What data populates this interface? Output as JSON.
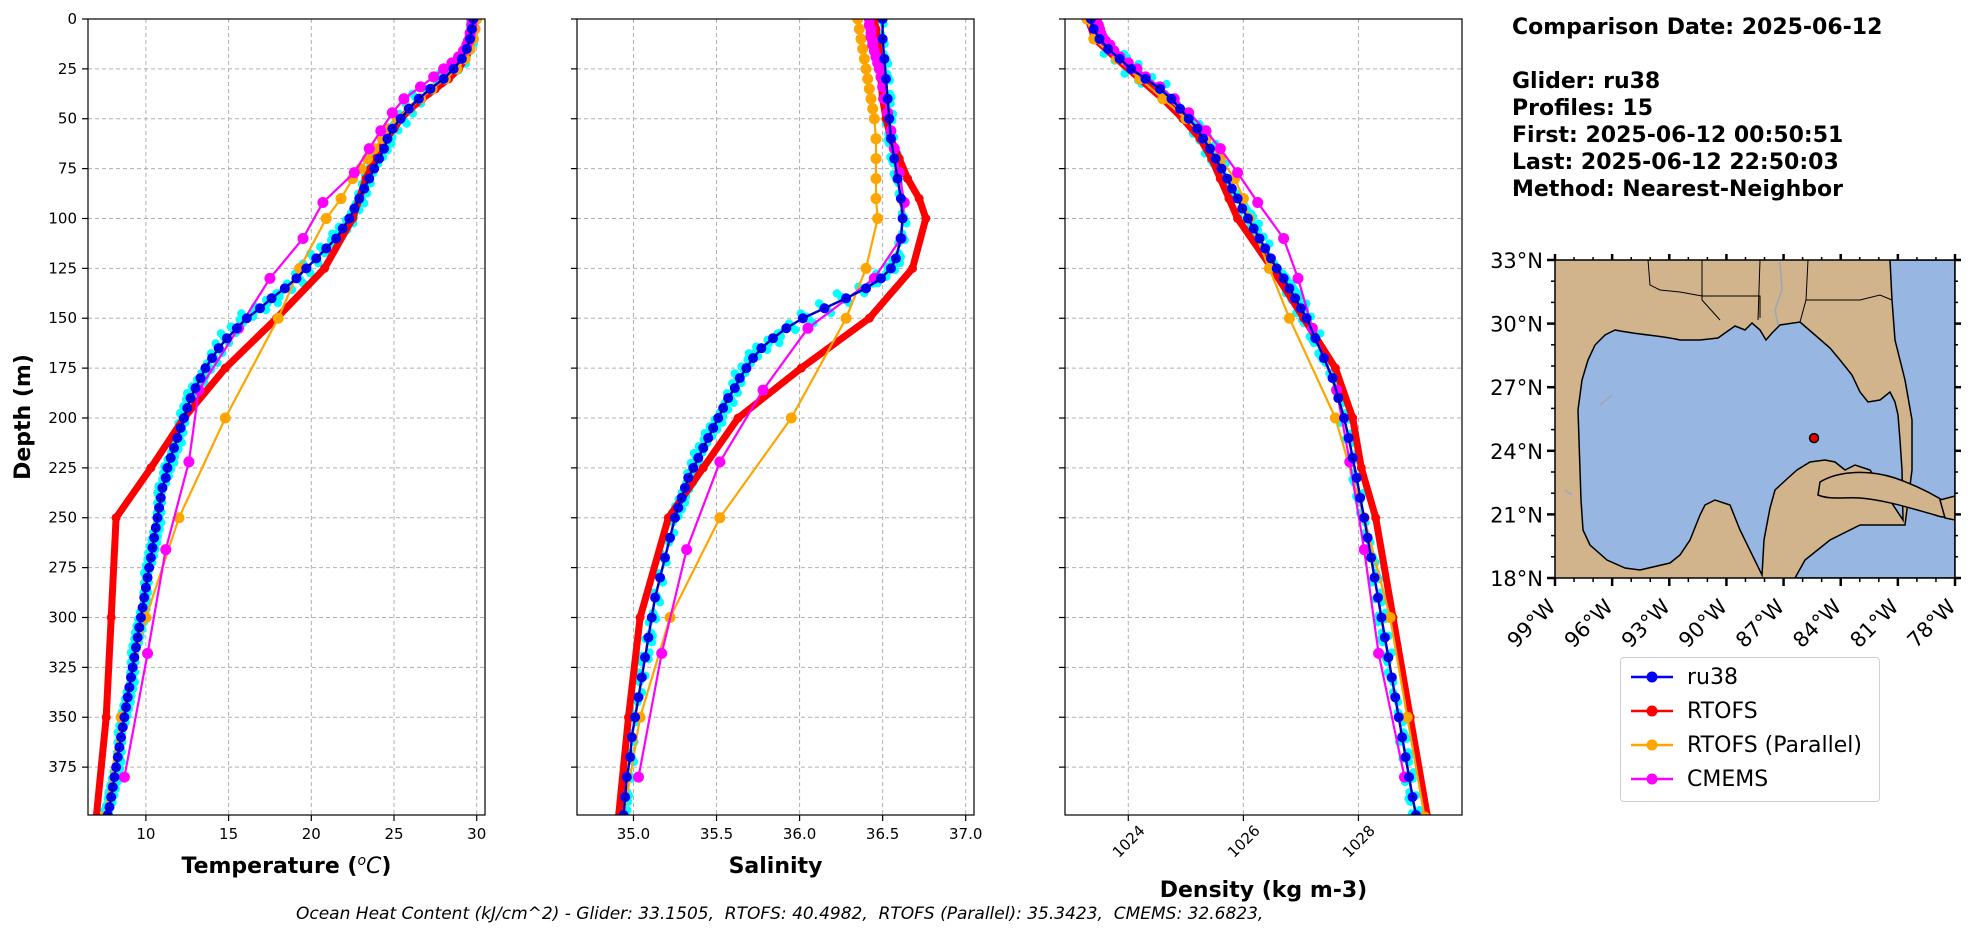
{
  "info": {
    "comparison_date": "Comparison Date: 2025-06-12",
    "glider": "Glider: ru38",
    "profiles": "Profiles: 15",
    "first": "First: 2025-06-12 00:50:51",
    "last": "Last: 2025-06-12 22:50:03",
    "method": "Method: Nearest-Neighbor"
  },
  "footnote": "Ocean Heat Content (kJ/cm^2) - Glider: 33.1505,  RTOFS: 40.4982,  RTOFS (Parallel): 35.3423,  CMEMS: 32.6823,",
  "colors": {
    "ru38": "#0000ff",
    "rtofs": "#ff0000",
    "parallel": "#ffa500",
    "cmems": "#ff00ff",
    "glider_raw": "#00ffff",
    "land": "#d2b48c",
    "ocean": "#97b6e1"
  },
  "legend": [
    {
      "key": "ru38",
      "label": "ru38"
    },
    {
      "key": "rtofs",
      "label": "RTOFS"
    },
    {
      "key": "parallel",
      "label": "RTOFS (Parallel)"
    },
    {
      "key": "cmems",
      "label": "CMEMS"
    }
  ],
  "chart_data": [
    {
      "type": "line",
      "xlabel": "Temperature (oC)",
      "ylabel": "Depth (m)",
      "xlim": [
        6.5,
        30.5
      ],
      "ylim": [
        399,
        0
      ],
      "xticks": [
        10,
        15,
        20,
        25,
        30
      ],
      "yticks": [
        0,
        25,
        50,
        75,
        100,
        125,
        150,
        175,
        200,
        225,
        250,
        275,
        300,
        325,
        350,
        375
      ],
      "grid": true,
      "series": [
        {
          "name": "ru38",
          "key": "ru38",
          "depth": [
            0,
            5,
            10,
            15,
            20,
            25,
            30,
            35,
            40,
            45,
            50,
            55,
            60,
            65,
            70,
            75,
            80,
            85,
            90,
            95,
            100,
            105,
            110,
            115,
            120,
            125,
            130,
            135,
            140,
            145,
            150,
            155,
            160,
            165,
            170,
            175,
            180,
            185,
            190,
            195,
            200,
            205,
            210,
            215,
            220,
            225,
            230,
            235,
            240,
            245,
            250,
            255,
            260,
            265,
            270,
            275,
            280,
            285,
            290,
            295,
            300,
            305,
            310,
            315,
            320,
            325,
            330,
            335,
            340,
            345,
            350,
            355,
            360,
            365,
            370,
            375,
            380,
            385,
            390,
            395,
            399
          ],
          "values": [
            29.8,
            29.7,
            29.6,
            29.4,
            29.1,
            28.6,
            28.0,
            27.2,
            26.5,
            25.9,
            25.4,
            24.9,
            24.6,
            24.4,
            24.1,
            23.8,
            23.5,
            23.2,
            22.9,
            22.6,
            22.3,
            21.9,
            21.5,
            20.9,
            20.3,
            19.7,
            19.1,
            18.4,
            17.6,
            16.9,
            16.1,
            15.5,
            14.9,
            14.4,
            14.0,
            13.6,
            13.3,
            13.0,
            12.7,
            12.5,
            12.3,
            12.1,
            11.9,
            11.7,
            11.5,
            11.3,
            11.2,
            11.0,
            10.9,
            10.8,
            10.7,
            10.6,
            10.5,
            10.4,
            10.3,
            10.2,
            10.1,
            10.0,
            9.9,
            9.8,
            9.7,
            9.6,
            9.5,
            9.4,
            9.3,
            9.2,
            9.1,
            9.0,
            8.9,
            8.8,
            8.7,
            8.6,
            8.5,
            8.4,
            8.3,
            8.2,
            8.1,
            8.0,
            7.9,
            7.8,
            7.7
          ]
        },
        {
          "name": "RTOFS",
          "key": "rtofs",
          "depth": [
            0,
            5,
            10,
            15,
            20,
            25,
            30,
            35,
            40,
            45,
            50,
            55,
            60,
            65,
            70,
            75,
            80,
            90,
            100,
            125,
            150,
            175,
            200,
            225,
            250,
            300,
            350,
            400
          ],
          "values": [
            29.9,
            29.8,
            29.7,
            29.6,
            29.3,
            28.9,
            28.3,
            27.5,
            26.7,
            26.0,
            25.4,
            25.0,
            24.5,
            24.2,
            23.9,
            23.6,
            23.3,
            22.9,
            22.5,
            20.8,
            17.9,
            14.8,
            12.3,
            10.3,
            8.2,
            7.9,
            7.6,
            7.0
          ]
        },
        {
          "name": "RTOFS (Parallel)",
          "key": "parallel",
          "depth": [
            0,
            5,
            10,
            15,
            20,
            25,
            30,
            35,
            40,
            45,
            50,
            55,
            60,
            65,
            70,
            75,
            80,
            90,
            100,
            125,
            150,
            200,
            250,
            300,
            350,
            400
          ],
          "values": [
            30.0,
            29.9,
            29.8,
            29.6,
            29.3,
            28.8,
            28.1,
            27.3,
            26.6,
            25.9,
            25.2,
            24.7,
            24.3,
            23.8,
            23.4,
            23.0,
            22.5,
            21.8,
            20.9,
            19.3,
            18.0,
            14.8,
            12.0,
            10.0,
            8.5,
            7.5
          ]
        },
        {
          "name": "CMEMS",
          "key": "cmems",
          "depth": [
            0,
            3,
            5,
            7,
            9,
            11,
            13,
            16,
            19,
            22,
            25,
            29,
            34,
            40,
            47,
            56,
            65,
            77,
            92,
            110,
            130,
            155,
            186,
            222,
            266,
            318,
            380
          ],
          "values": [
            29.7,
            29.7,
            29.7,
            29.6,
            29.6,
            29.5,
            29.4,
            29.2,
            28.9,
            28.5,
            28.0,
            27.4,
            26.6,
            25.6,
            24.9,
            24.2,
            23.5,
            22.6,
            20.7,
            19.5,
            17.5,
            15.6,
            13.2,
            12.6,
            11.2,
            10.1,
            8.7
          ]
        }
      ]
    },
    {
      "type": "line",
      "xlabel": "Salinity",
      "ylabel": "",
      "xlim": [
        34.66,
        37.05
      ],
      "ylim": [
        399,
        0
      ],
      "xticks": [
        35.0,
        35.5,
        36.0,
        36.5,
        37.0
      ],
      "yticks": [
        0,
        25,
        50,
        75,
        100,
        125,
        150,
        175,
        200,
        225,
        250,
        275,
        300,
        325,
        350,
        375
      ],
      "grid": true,
      "series": [
        {
          "name": "ru38",
          "key": "ru38",
          "depth": [
            0,
            10,
            20,
            30,
            40,
            50,
            60,
            70,
            80,
            90,
            100,
            110,
            120,
            125,
            130,
            135,
            140,
            145,
            150,
            155,
            160,
            165,
            170,
            175,
            180,
            185,
            190,
            195,
            200,
            205,
            210,
            215,
            220,
            225,
            230,
            235,
            240,
            245,
            250,
            260,
            270,
            280,
            290,
            300,
            310,
            320,
            330,
            340,
            350,
            360,
            370,
            380,
            390,
            399
          ],
          "values": [
            36.5,
            36.5,
            36.51,
            36.52,
            36.53,
            36.54,
            36.55,
            36.57,
            36.59,
            36.61,
            36.62,
            36.61,
            36.58,
            36.55,
            36.49,
            36.4,
            36.28,
            36.15,
            36.02,
            35.92,
            35.84,
            35.77,
            35.72,
            35.68,
            35.64,
            35.61,
            35.57,
            35.54,
            35.51,
            35.48,
            35.45,
            35.42,
            35.39,
            35.36,
            35.33,
            35.31,
            35.29,
            35.27,
            35.25,
            35.22,
            35.19,
            35.16,
            35.13,
            35.11,
            35.09,
            35.07,
            35.05,
            35.03,
            35.01,
            34.99,
            34.98,
            34.96,
            34.95,
            34.94
          ]
        },
        {
          "name": "RTOFS",
          "key": "rtofs",
          "depth": [
            0,
            5,
            10,
            20,
            30,
            40,
            50,
            60,
            70,
            80,
            90,
            100,
            125,
            150,
            175,
            200,
            225,
            250,
            300,
            350,
            400
          ],
          "values": [
            36.45,
            36.46,
            36.47,
            36.48,
            36.49,
            36.5,
            36.52,
            36.55,
            36.6,
            36.65,
            36.72,
            36.76,
            36.68,
            36.42,
            36.01,
            35.63,
            35.42,
            35.21,
            35.04,
            34.97,
            34.91
          ]
        },
        {
          "name": "RTOFS (Parallel)",
          "key": "parallel",
          "depth": [
            0,
            5,
            10,
            15,
            20,
            25,
            30,
            35,
            40,
            45,
            50,
            60,
            70,
            80,
            90,
            100,
            125,
            150,
            200,
            250,
            300,
            350,
            400
          ],
          "values": [
            36.35,
            36.36,
            36.37,
            36.38,
            36.39,
            36.4,
            36.41,
            36.42,
            36.43,
            36.44,
            36.45,
            36.46,
            36.46,
            36.46,
            36.46,
            36.47,
            36.4,
            36.28,
            35.95,
            35.52,
            35.22,
            35.04,
            34.94
          ]
        },
        {
          "name": "CMEMS",
          "key": "cmems",
          "depth": [
            0,
            3,
            5,
            7,
            9,
            11,
            13,
            16,
            19,
            22,
            25,
            29,
            34,
            40,
            47,
            56,
            65,
            77,
            92,
            110,
            130,
            155,
            186,
            222,
            266,
            318,
            380
          ],
          "values": [
            36.42,
            36.42,
            36.43,
            36.43,
            36.43,
            36.44,
            36.44,
            36.45,
            36.46,
            36.47,
            36.48,
            36.49,
            36.5,
            36.51,
            36.53,
            36.55,
            36.57,
            36.6,
            36.63,
            36.61,
            36.45,
            36.05,
            35.78,
            35.52,
            35.32,
            35.17,
            35.03
          ]
        }
      ]
    },
    {
      "type": "line",
      "xlabel": "Density (kg m-3)",
      "ylabel": "",
      "xlim": [
        1022.9,
        1029.8
      ],
      "ylim": [
        399,
        0
      ],
      "xticks": [
        1024,
        1026,
        1028
      ],
      "yticks": [
        0,
        25,
        50,
        75,
        100,
        125,
        150,
        175,
        200,
        225,
        250,
        275,
        300,
        325,
        350,
        375
      ],
      "grid": true,
      "series": [
        {
          "name": "ru38",
          "key": "ru38",
          "depth": [
            0,
            5,
            10,
            15,
            20,
            25,
            30,
            35,
            40,
            45,
            50,
            55,
            60,
            65,
            70,
            75,
            80,
            85,
            90,
            95,
            100,
            105,
            110,
            115,
            120,
            125,
            130,
            135,
            140,
            145,
            150,
            160,
            170,
            180,
            190,
            200,
            210,
            220,
            230,
            240,
            250,
            260,
            270,
            280,
            290,
            300,
            310,
            320,
            330,
            340,
            350,
            360,
            370,
            380,
            390,
            399
          ],
          "values": [
            1023.35,
            1023.4,
            1023.5,
            1023.65,
            1023.85,
            1024.05,
            1024.3,
            1024.55,
            1024.75,
            1024.9,
            1025.05,
            1025.2,
            1025.3,
            1025.42,
            1025.52,
            1025.62,
            1025.72,
            1025.8,
            1025.9,
            1025.98,
            1026.08,
            1026.18,
            1026.28,
            1026.38,
            1026.48,
            1026.58,
            1026.7,
            1026.8,
            1026.9,
            1027.0,
            1027.1,
            1027.25,
            1027.4,
            1027.55,
            1027.65,
            1027.75,
            1027.83,
            1027.9,
            1027.97,
            1028.03,
            1028.1,
            1028.16,
            1028.22,
            1028.28,
            1028.34,
            1028.4,
            1028.46,
            1028.52,
            1028.58,
            1028.64,
            1028.7,
            1028.76,
            1028.82,
            1028.88,
            1028.94,
            1029.0
          ]
        },
        {
          "name": "RTOFS",
          "key": "rtofs",
          "depth": [
            0,
            10,
            20,
            30,
            40,
            50,
            60,
            70,
            80,
            90,
            100,
            125,
            150,
            175,
            200,
            225,
            250,
            300,
            350,
            400
          ],
          "values": [
            1023.3,
            1023.42,
            1023.8,
            1024.2,
            1024.6,
            1024.95,
            1025.25,
            1025.45,
            1025.6,
            1025.75,
            1025.9,
            1026.5,
            1027.05,
            1027.6,
            1027.9,
            1028.05,
            1028.3,
            1028.6,
            1028.9,
            1029.2
          ]
        },
        {
          "name": "RTOFS (Parallel)",
          "key": "parallel",
          "depth": [
            0,
            10,
            20,
            30,
            40,
            50,
            60,
            70,
            80,
            90,
            100,
            125,
            150,
            200,
            250,
            300,
            350,
            400
          ],
          "values": [
            1023.28,
            1023.4,
            1023.8,
            1024.2,
            1024.6,
            1025.0,
            1025.35,
            1025.6,
            1025.85,
            1026.0,
            1026.1,
            1026.45,
            1026.8,
            1027.6,
            1028.1,
            1028.55,
            1028.85,
            1029.15
          ]
        },
        {
          "name": "CMEMS",
          "key": "cmems",
          "depth": [
            0,
            3,
            5,
            7,
            9,
            11,
            13,
            16,
            19,
            22,
            25,
            29,
            34,
            40,
            47,
            56,
            65,
            77,
            92,
            110,
            130,
            155,
            186,
            222,
            266,
            318,
            380
          ],
          "values": [
            1023.45,
            1023.48,
            1023.5,
            1023.52,
            1023.55,
            1023.6,
            1023.68,
            1023.75,
            1023.85,
            1024.0,
            1024.15,
            1024.3,
            1024.55,
            1024.8,
            1025.05,
            1025.35,
            1025.6,
            1025.9,
            1026.25,
            1026.7,
            1026.95,
            1027.2,
            1027.62,
            1027.85,
            1028.1,
            1028.35,
            1028.8
          ]
        }
      ]
    },
    {
      "type": "map",
      "lat_ticks": [
        "33°N",
        "30°N",
        "27°N",
        "24°N",
        "21°N",
        "18°N"
      ],
      "lon_ticks": [
        "99°W",
        "96°W",
        "93°W",
        "90°W",
        "87°W",
        "84°W",
        "81°W",
        "78°W"
      ],
      "lat_range": [
        18,
        33
      ],
      "lon_range": [
        -99,
        -78
      ],
      "glider_position": {
        "lon": -85.4,
        "lat": 24.6
      }
    }
  ]
}
